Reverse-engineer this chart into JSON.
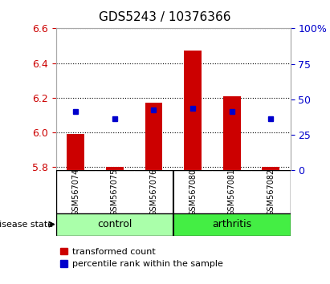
{
  "title": "GDS5243 / 10376366",
  "samples": [
    "GSM567074",
    "GSM567075",
    "GSM567076",
    "GSM567080",
    "GSM567081",
    "GSM567082"
  ],
  "groups": [
    "control",
    "control",
    "control",
    "arthritis",
    "arthritis",
    "arthritis"
  ],
  "bar_bottom": 5.78,
  "bar_top_values": [
    5.99,
    5.8,
    6.17,
    6.47,
    6.21,
    5.8
  ],
  "percentile_values": [
    6.12,
    6.08,
    6.13,
    6.14,
    6.12,
    6.08
  ],
  "bar_color": "#cc0000",
  "dot_color": "#0000cc",
  "ylim": [
    5.78,
    6.6
  ],
  "yticks_left": [
    5.8,
    6.0,
    6.2,
    6.4,
    6.6
  ],
  "yticks_right": [
    0,
    25,
    50,
    75,
    100
  ],
  "left_tick_color": "#cc0000",
  "right_tick_color": "#0000cc",
  "control_color": "#aaffaa",
  "arthritis_color": "#44ee44",
  "legend_red_label": "transformed count",
  "legend_blue_label": "percentile rank within the sample"
}
